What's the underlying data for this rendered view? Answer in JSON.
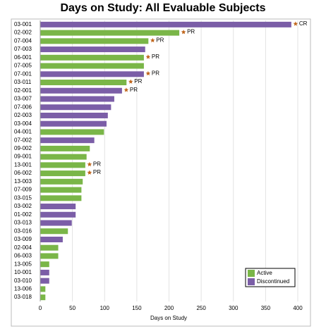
{
  "chart_data": {
    "type": "bar",
    "orientation": "horizontal",
    "title": "Days on Study: All Evaluable Subjects",
    "x_label": "Days on Study",
    "categories": [
      "03-001",
      "02-002",
      "07-004",
      "07-003",
      "06-001",
      "07-005",
      "07-001",
      "03-011",
      "02-001",
      "03-007",
      "07-006",
      "02-003",
      "03-004",
      "04-001",
      "07-002",
      "09-002",
      "09-001",
      "13-001",
      "06-002",
      "13-003",
      "07-009",
      "03-015",
      "03-002",
      "01-002",
      "03-013",
      "03-016",
      "03-009",
      "02-004",
      "06-003",
      "13-005",
      "10-001",
      "03-010",
      "13-006",
      "03-018"
    ],
    "series": [
      {
        "name": "Active",
        "color": "#7ab648",
        "values": [
          null,
          216,
          168,
          null,
          161,
          161,
          null,
          134,
          null,
          null,
          null,
          null,
          null,
          99,
          null,
          77,
          72,
          70,
          70,
          66,
          64,
          64,
          null,
          null,
          null,
          43,
          null,
          28,
          28,
          14,
          null,
          null,
          8,
          8
        ]
      },
      {
        "name": "Discontinued",
        "color": "#7b5ea7",
        "values": [
          390,
          null,
          null,
          163,
          null,
          null,
          161,
          null,
          127,
          115,
          110,
          105,
          103,
          null,
          84,
          null,
          null,
          null,
          null,
          null,
          null,
          null,
          55,
          55,
          49,
          null,
          35,
          null,
          null,
          null,
          14,
          14,
          null,
          null
        ]
      }
    ],
    "responses": [
      "CR",
      "PR",
      "PR",
      null,
      "PR",
      null,
      "PR",
      "PR",
      "PR",
      null,
      null,
      null,
      null,
      null,
      null,
      null,
      null,
      "PR",
      "PR",
      null,
      null,
      null,
      null,
      null,
      null,
      null,
      null,
      null,
      null,
      null,
      null,
      null,
      null,
      null
    ],
    "response_color": "#c0661c",
    "xlim": [
      0,
      400
    ],
    "xticks": [
      0,
      50,
      100,
      150,
      200,
      250,
      300,
      350,
      400
    ],
    "grid": true,
    "legend_position": "lower right"
  }
}
